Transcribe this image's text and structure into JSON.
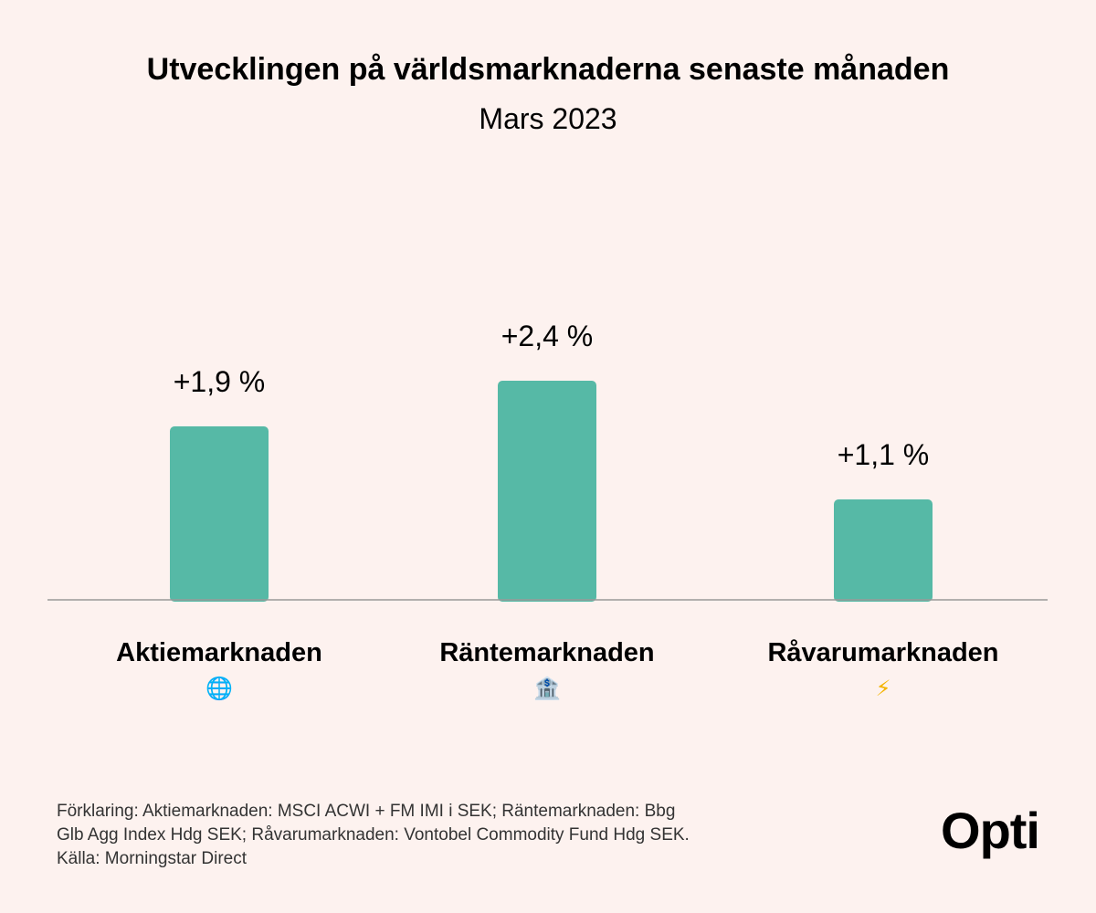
{
  "header": {
    "title": "Utvecklingen på världsmarknaderna senaste månaden",
    "subtitle": "Mars 2023"
  },
  "chart_data": {
    "type": "bar",
    "categories": [
      "Aktiemarknaden",
      "Räntemarknaden",
      "Råvarumarknaden"
    ],
    "values": [
      1.9,
      2.4,
      1.1
    ],
    "value_labels": [
      "+1,9 %",
      "+2,4 %",
      "+1,1 %"
    ],
    "category_icons": [
      "globe-icon",
      "bank-icon",
      "lightning-icon"
    ],
    "category_glyphs": [
      "🌐",
      "🏦",
      "⚡"
    ],
    "bar_color": "#56b9a6",
    "baseline_color": "#999999",
    "grid": false,
    "legend": "none",
    "ylim": [
      0,
      3
    ]
  },
  "footnote": {
    "lines": [
      "Förklaring: Aktiemarknaden: MSCI ACWI + FM IMI i SEK; Räntemarknaden: Bbg",
      "Glb Agg Index Hdg SEK; Råvarumarknaden: Vontobel Commodity Fund Hdg SEK.",
      "Källa: Morningstar Direct"
    ]
  },
  "brand": {
    "logo": "Opti"
  }
}
